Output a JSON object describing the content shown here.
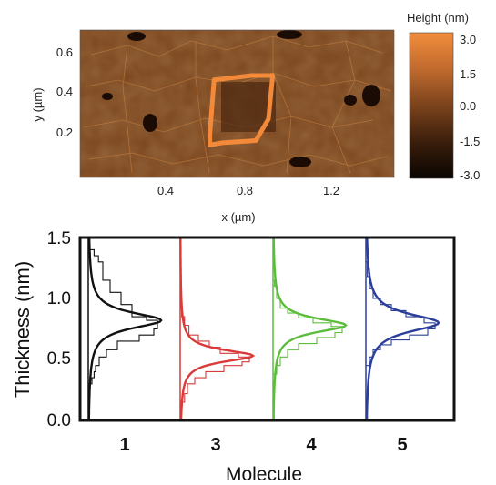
{
  "chart_data": [
    {
      "type": "heatmap",
      "xlabel": "x (µm)",
      "ylabel": "y (µm)",
      "xlim": [
        0.0,
        1.5
      ],
      "ylim": [
        0.0,
        0.68
      ],
      "x_ticks": [
        "0.4",
        "0.8",
        "1.2"
      ],
      "y_ticks": [
        "0.2",
        "0.4",
        "0.6"
      ],
      "colorbar": {
        "title": "Height (nm)",
        "range": [
          -3.0,
          3.0
        ],
        "ticks": [
          "3.0",
          "1.5",
          "0.0",
          "-1.5",
          "-3.0"
        ],
        "colors": [
          "#0e0702",
          "#3a1e0b",
          "#7b431c",
          "#c06a2e",
          "#f28c3c"
        ]
      },
      "annotation": {
        "shape": "outlined trapezoid (highlighted region)",
        "color": "#f28a3a",
        "points_um": [
          [
            0.64,
            0.45
          ],
          [
            0.82,
            0.47
          ],
          [
            0.92,
            0.47
          ],
          [
            0.9,
            0.27
          ],
          [
            0.84,
            0.17
          ],
          [
            0.68,
            0.16
          ],
          [
            0.62,
            0.15
          ],
          [
            0.62,
            0.2
          ],
          [
            0.64,
            0.45
          ]
        ]
      }
    },
    {
      "type": "histogram",
      "xlabel": "Molecule",
      "ylabel": "Thickness (nm)",
      "ylim": [
        0.0,
        1.5
      ],
      "y_ticks": [
        "0.0",
        "0.5",
        "1.0",
        "1.5"
      ],
      "categories": [
        "1",
        "3",
        "4",
        "5"
      ],
      "series": [
        {
          "name": "1",
          "color": "#111111",
          "peak": 0.82,
          "width": 0.08,
          "bins_x": [
            0.02,
            0.08,
            0.14,
            0.2,
            0.3,
            0.45,
            0.6,
            0.8,
            0.95,
            0.9,
            0.7,
            0.4,
            0.25,
            0.15,
            0.1,
            0.08,
            0.05,
            0.02
          ],
          "bins_y": [
            1.45,
            1.4,
            1.35,
            1.3,
            1.15,
            1.05,
            0.95,
            0.85,
            0.82,
            0.75,
            0.7,
            0.65,
            0.58,
            0.52,
            0.45,
            0.4,
            0.35,
            0.3
          ]
        },
        {
          "name": "3",
          "color": "#d93a3a",
          "peak": 0.53,
          "width": 0.06,
          "bins_x": [
            0.02,
            0.06,
            0.12,
            0.25,
            0.4,
            0.55,
            0.8,
            0.95,
            0.85,
            0.6,
            0.35,
            0.2,
            0.1,
            0.06,
            0.02
          ],
          "bins_y": [
            0.92,
            0.85,
            0.78,
            0.7,
            0.65,
            0.6,
            0.55,
            0.52,
            0.48,
            0.45,
            0.4,
            0.35,
            0.3,
            0.22,
            0.15
          ]
        },
        {
          "name": "4",
          "color": "#5cbd3c",
          "peak": 0.78,
          "width": 0.07,
          "bins_x": [
            0.02,
            0.05,
            0.1,
            0.2,
            0.35,
            0.55,
            0.8,
            0.95,
            0.85,
            0.6,
            0.35,
            0.2,
            0.1,
            0.05,
            0.02
          ],
          "bins_y": [
            1.15,
            1.1,
            1.0,
            0.92,
            0.88,
            0.84,
            0.8,
            0.77,
            0.72,
            0.68,
            0.63,
            0.58,
            0.52,
            0.45,
            0.38
          ]
        },
        {
          "name": "5",
          "color": "#2b3f9a",
          "peak": 0.8,
          "width": 0.09,
          "bins_x": [
            0.02,
            0.05,
            0.1,
            0.2,
            0.35,
            0.55,
            0.8,
            0.95,
            0.85,
            0.6,
            0.35,
            0.2,
            0.1,
            0.05,
            0.02
          ],
          "bins_y": [
            1.3,
            1.18,
            1.08,
            1.0,
            0.95,
            0.9,
            0.85,
            0.8,
            0.75,
            0.7,
            0.66,
            0.62,
            0.58,
            0.52,
            0.45
          ]
        }
      ]
    }
  ]
}
